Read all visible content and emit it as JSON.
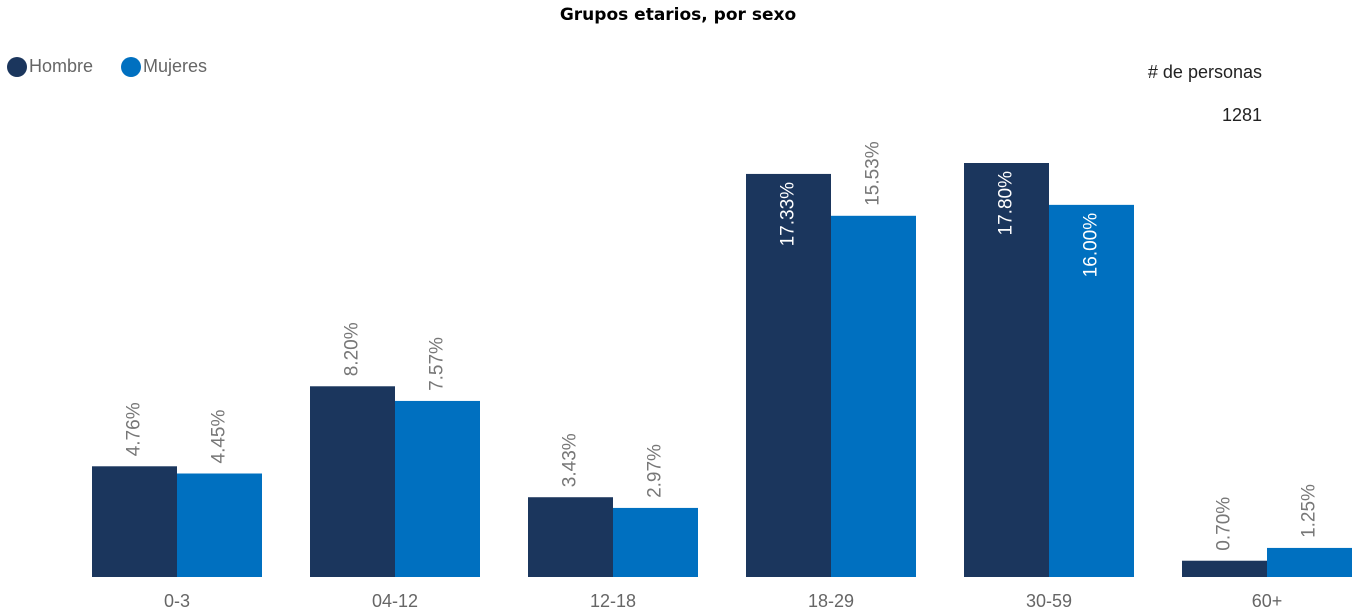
{
  "chart_data": {
    "type": "bar",
    "title": "Grupos etarios, por sexo",
    "categories": [
      "0-3",
      "04-12",
      "12-18",
      "18-29",
      "30-59",
      "60+"
    ],
    "series": [
      {
        "name": "Hombre",
        "color": "#1b365d",
        "values": [
          4.76,
          8.2,
          3.43,
          17.33,
          17.8,
          0.7
        ],
        "value_labels": [
          "4.76%",
          "8.20%",
          "3.43%",
          "17.33%",
          "17.80%",
          "0.70%"
        ]
      },
      {
        "name": "Mujeres",
        "color": "#0070c0",
        "values": [
          4.45,
          7.57,
          2.97,
          15.53,
          16.0,
          1.25
        ],
        "value_labels": [
          "4.45%",
          "7.57%",
          "2.97%",
          "15.53%",
          "16.00%",
          "1.25%"
        ]
      }
    ],
    "legend": "top-left"
  },
  "card": {
    "label": "# de personas",
    "value": 1281
  }
}
